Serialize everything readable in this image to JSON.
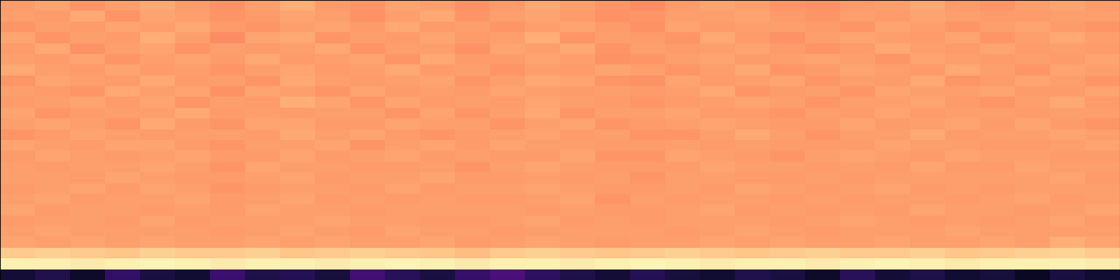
{
  "chart_data": {
    "type": "heatmap",
    "color": "magma",
    "tick_labels": false,
    "value_range": [
      0,
      100
    ],
    "cells": [
      [
        79,
        81,
        78,
        80,
        82,
        79,
        77,
        80,
        83,
        79,
        78,
        81,
        80,
        77,
        79,
        82,
        80,
        78,
        76,
        79,
        81,
        80,
        78,
        77,
        79,
        80,
        82,
        79,
        78,
        80,
        81,
        79
      ],
      [
        80,
        79,
        82,
        78,
        81,
        80,
        78,
        79,
        81,
        80,
        77,
        80,
        82,
        78,
        80,
        81,
        79,
        77,
        78,
        80,
        80,
        81,
        79,
        78,
        80,
        79,
        81,
        80,
        79,
        79,
        80,
        80
      ],
      [
        78,
        80,
        79,
        81,
        80,
        82,
        79,
        78,
        80,
        81,
        79,
        82,
        79,
        80,
        78,
        80,
        81,
        79,
        77,
        81,
        79,
        80,
        80,
        79,
        78,
        81,
        80,
        78,
        80,
        81,
        79,
        78
      ],
      [
        81,
        78,
        80,
        79,
        83,
        80,
        76,
        81,
        82,
        78,
        80,
        79,
        81,
        79,
        80,
        83,
        78,
        80,
        79,
        78,
        82,
        79,
        77,
        80,
        81,
        80,
        79,
        81,
        78,
        80,
        82,
        80
      ],
      [
        79,
        82,
        77,
        80,
        81,
        78,
        80,
        79,
        80,
        82,
        78,
        80,
        80,
        77,
        81,
        80,
        82,
        78,
        80,
        79,
        80,
        81,
        79,
        78,
        79,
        82,
        80,
        79,
        81,
        79,
        80,
        79
      ],
      [
        80,
        79,
        81,
        78,
        80,
        81,
        79,
        82,
        79,
        80,
        81,
        78,
        82,
        79,
        79,
        81,
        80,
        77,
        78,
        80,
        81,
        79,
        80,
        81,
        80,
        78,
        81,
        80,
        79,
        80,
        79,
        81
      ],
      [
        82,
        80,
        79,
        81,
        79,
        80,
        78,
        80,
        81,
        79,
        80,
        82,
        79,
        80,
        78,
        80,
        79,
        81,
        80,
        78,
        80,
        82,
        78,
        79,
        81,
        80,
        79,
        82,
        80,
        78,
        81,
        80
      ],
      [
        78,
        81,
        80,
        79,
        82,
        79,
        80,
        78,
        82,
        80,
        79,
        80,
        81,
        78,
        80,
        82,
        81,
        78,
        77,
        81,
        79,
        80,
        81,
        78,
        80,
        79,
        82,
        78,
        79,
        81,
        80,
        78
      ],
      [
        80,
        79,
        78,
        82,
        80,
        81,
        77,
        81,
        80,
        78,
        81,
        79,
        80,
        79,
        81,
        80,
        79,
        80,
        79,
        80,
        82,
        78,
        79,
        80,
        78,
        81,
        80,
        80,
        81,
        79,
        79,
        81
      ],
      [
        79,
        80,
        81,
        79,
        81,
        78,
        80,
        79,
        83,
        81,
        78,
        81,
        79,
        80,
        79,
        81,
        80,
        79,
        78,
        79,
        80,
        81,
        80,
        78,
        80,
        80,
        81,
        79,
        78,
        80,
        82,
        79
      ],
      [
        81,
        78,
        79,
        80,
        80,
        82,
        79,
        80,
        79,
        80,
        80,
        78,
        81,
        78,
        80,
        82,
        78,
        80,
        80,
        81,
        79,
        79,
        78,
        80,
        79,
        81,
        79,
        80,
        80,
        79,
        80,
        80
      ],
      [
        80,
        81,
        80,
        78,
        82,
        79,
        78,
        81,
        81,
        79,
        79,
        81,
        80,
        80,
        78,
        80,
        81,
        78,
        79,
        80,
        81,
        80,
        79,
        79,
        81,
        79,
        80,
        81,
        79,
        81,
        79,
        78
      ],
      [
        78,
        79,
        81,
        80,
        79,
        80,
        80,
        79,
        82,
        80,
        81,
        79,
        78,
        79,
        80,
        81,
        79,
        80,
        78,
        78,
        80,
        82,
        80,
        78,
        80,
        80,
        82,
        79,
        80,
        80,
        81,
        80
      ],
      [
        81,
        80,
        79,
        81,
        81,
        79,
        78,
        80,
        80,
        81,
        78,
        80,
        81,
        79,
        81,
        80,
        80,
        79,
        79,
        80,
        79,
        80,
        79,
        79,
        79,
        81,
        80,
        80,
        79,
        79,
        80,
        81
      ],
      [
        79,
        81,
        80,
        79,
        80,
        81,
        79,
        79,
        81,
        79,
        80,
        81,
        79,
        80,
        79,
        79,
        81,
        78,
        78,
        81,
        80,
        79,
        78,
        80,
        81,
        80,
        79,
        81,
        80,
        80,
        79,
        79
      ],
      [
        80,
        79,
        80,
        80,
        81,
        80,
        78,
        81,
        80,
        80,
        79,
        79,
        80,
        78,
        80,
        81,
        80,
        79,
        79,
        79,
        81,
        80,
        80,
        79,
        80,
        79,
        81,
        79,
        79,
        81,
        80,
        80
      ],
      [
        80,
        80,
        79,
        81,
        80,
        79,
        79,
        80,
        81,
        79,
        80,
        80,
        81,
        79,
        79,
        80,
        79,
        80,
        78,
        80,
        80,
        79,
        79,
        80,
        79,
        80,
        80,
        80,
        80,
        80,
        81,
        79
      ],
      [
        79,
        80,
        81,
        79,
        81,
        80,
        78,
        79,
        80,
        80,
        79,
        81,
        79,
        80,
        80,
        81,
        80,
        79,
        79,
        80,
        79,
        81,
        80,
        79,
        80,
        81,
        79,
        80,
        79,
        80,
        80,
        80
      ],
      [
        80,
        81,
        79,
        80,
        80,
        81,
        79,
        80,
        81,
        79,
        80,
        79,
        80,
        79,
        79,
        80,
        81,
        78,
        80,
        79,
        80,
        80,
        79,
        80,
        79,
        80,
        80,
        79,
        80,
        81,
        79,
        80
      ],
      [
        81,
        79,
        80,
        80,
        79,
        80,
        79,
        81,
        80,
        80,
        79,
        80,
        80,
        80,
        80,
        79,
        80,
        79,
        79,
        80,
        81,
        79,
        80,
        79,
        80,
        79,
        81,
        80,
        80,
        79,
        80,
        81
      ],
      [
        79,
        80,
        80,
        79,
        81,
        79,
        80,
        80,
        80,
        81,
        80,
        80,
        79,
        79,
        80,
        81,
        79,
        80,
        79,
        80,
        80,
        80,
        79,
        80,
        81,
        80,
        79,
        80,
        79,
        80,
        81,
        79
      ],
      [
        80,
        81,
        80,
        80,
        80,
        80,
        79,
        80,
        81,
        80,
        79,
        81,
        80,
        80,
        79,
        80,
        80,
        80,
        80,
        79,
        80,
        81,
        80,
        79,
        80,
        80,
        80,
        81,
        80,
        80,
        80,
        80
      ],
      [
        81,
        80,
        81,
        80,
        81,
        80,
        80,
        81,
        80,
        81,
        80,
        80,
        81,
        79,
        80,
        81,
        80,
        79,
        80,
        80,
        81,
        80,
        81,
        80,
        80,
        81,
        80,
        80,
        81,
        80,
        83,
        81
      ],
      [
        89,
        90,
        89,
        88,
        90,
        89,
        89,
        90,
        88,
        89,
        90,
        89,
        88,
        86,
        89,
        90,
        89,
        88,
        89,
        90,
        89,
        88,
        89,
        90,
        89,
        89,
        90,
        88,
        89,
        90,
        91,
        89
      ],
      [
        97,
        97,
        96,
        97,
        98,
        97,
        96,
        97,
        97,
        96,
        97,
        98,
        97,
        96,
        97,
        97,
        96,
        97,
        98,
        97,
        96,
        97,
        97,
        96,
        97,
        98,
        97,
        96,
        97,
        97,
        97,
        96
      ],
      [
        10,
        14,
        8,
        18,
        12,
        9,
        20,
        13,
        15,
        11,
        22,
        16,
        12,
        19,
        24,
        17,
        13,
        10,
        15,
        11,
        9,
        14,
        12,
        8,
        16,
        10,
        13,
        9,
        11,
        7,
        12,
        9
      ]
    ]
  }
}
